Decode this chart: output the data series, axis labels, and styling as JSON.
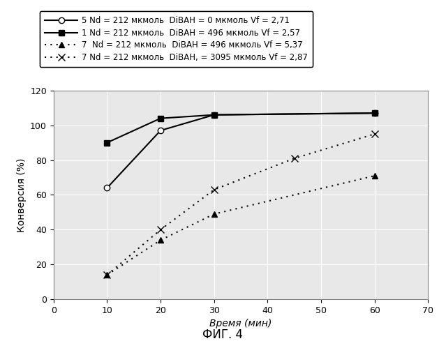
{
  "series": [
    {
      "label": "5 Nd = 212 мкмоль  DiBAH = 0 мкмоль Vf = 2,71",
      "x": [
        10,
        20,
        30,
        60
      ],
      "y": [
        64,
        97,
        106,
        107
      ],
      "color": "black",
      "linestyle": "-",
      "marker": "o",
      "markerfacecolor": "white",
      "markersize": 6,
      "linewidth": 1.5,
      "dashes": null
    },
    {
      "label": "1 Nd = 212 мкмоль  DiBAH = 496 мкмоль Vf = 2,57",
      "x": [
        10,
        20,
        30,
        60
      ],
      "y": [
        90,
        104,
        106,
        107
      ],
      "color": "black",
      "linestyle": "-",
      "marker": "s",
      "markerfacecolor": "black",
      "markersize": 6,
      "linewidth": 1.5,
      "dashes": null
    },
    {
      "label": "7  Nd = 212 мкмоль  DiBAH = 496 мкмоль Vf = 5,37",
      "x": [
        10,
        20,
        30,
        60
      ],
      "y": [
        14,
        34,
        49,
        71
      ],
      "color": "black",
      "linestyle": "dotted",
      "marker": "^",
      "markerfacecolor": "black",
      "markersize": 6,
      "linewidth": 1.5,
      "dashes": [
        1,
        3
      ]
    },
    {
      "label": "7 Nd = 212 мкмоль  DiBAH, = 3095 мкмоль Vf = 2,87",
      "x": [
        10,
        20,
        30,
        45,
        60
      ],
      "y": [
        14,
        40,
        63,
        81,
        95
      ],
      "color": "black",
      "linestyle": "dotted",
      "marker": "x",
      "markerfacecolor": "black",
      "markersize": 7,
      "linewidth": 1.5,
      "dashes": [
        1,
        3
      ]
    }
  ],
  "xlabel": "Время (мин)",
  "ylabel": "Конверсия (%)",
  "xlim": [
    0,
    70
  ],
  "ylim": [
    0,
    120
  ],
  "xticks": [
    0,
    10,
    20,
    30,
    40,
    50,
    60,
    70
  ],
  "yticks": [
    0,
    20,
    40,
    60,
    80,
    100,
    120
  ],
  "caption": "ФИГ. 4",
  "grid": true,
  "plot_bg": "#e8e8e8",
  "fig_bg": "white",
  "legend_fontsize": 8.5,
  "axis_fontsize": 10
}
